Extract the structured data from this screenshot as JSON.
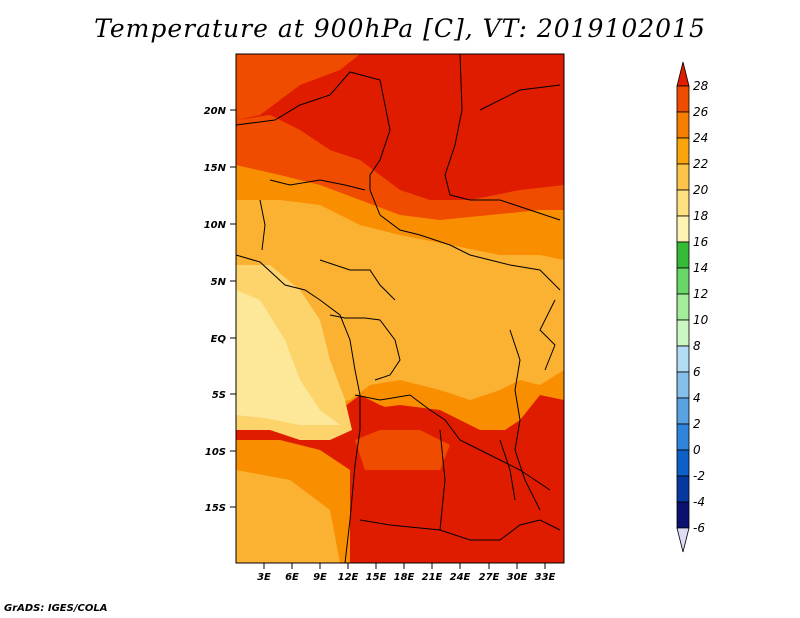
{
  "title": "Temperature at 900hPa [C], VT: 2019102015",
  "credit": "GrADS: IGES/COLA",
  "map": {
    "lat_labels": [
      "20N",
      "15N",
      "10N",
      "5N",
      "EQ",
      "5S",
      "10S",
      "15S"
    ],
    "lon_labels": [
      "3E",
      "6E",
      "9E",
      "12E",
      "15E",
      "18E",
      "21E",
      "24E",
      "27E",
      "30E",
      "33E"
    ]
  },
  "colorbar": {
    "labels": [
      "28",
      "26",
      "24",
      "22",
      "20",
      "18",
      "16",
      "14",
      "12",
      "10",
      "8",
      "6",
      "4",
      "2",
      "0",
      "-2",
      "-4",
      "-6"
    ],
    "colors": [
      "#e11d00",
      "#f04c00",
      "#f77f00",
      "#fba40c",
      "#fcc44a",
      "#fde07f",
      "#fff3b4",
      "#36bb36",
      "#68d768",
      "#a2ec9a",
      "#cbf7c2",
      "#b3dcf5",
      "#85c0ec",
      "#5aa3e3",
      "#2f85dc",
      "#0d60c8",
      "#0539a0",
      "#0a116e",
      "#dcdcf5"
    ]
  },
  "colors": {
    "hot": "#e01c00",
    "warm": "#f15a00",
    "mid": "#f98f00",
    "pale": "#fbb233",
    "cool": "#fdd46b",
    "coolest": "#fde89a"
  }
}
